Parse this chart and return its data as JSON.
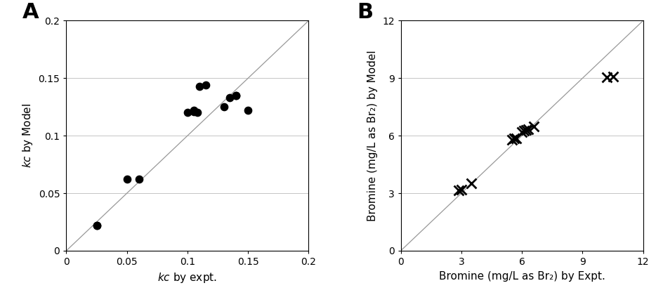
{
  "panel_A": {
    "label": "A",
    "xlabel": "kc by expt.",
    "ylabel": "kc by Model",
    "xlim": [
      0,
      0.2
    ],
    "ylim": [
      0,
      0.2
    ],
    "xticks": [
      0,
      0.05,
      0.1,
      0.15,
      0.2
    ],
    "yticks": [
      0,
      0.05,
      0.1,
      0.15,
      0.2
    ],
    "data_x": [
      0.025,
      0.025,
      0.05,
      0.06,
      0.1,
      0.105,
      0.105,
      0.108,
      0.11,
      0.115,
      0.13,
      0.14,
      0.14,
      0.135,
      0.15
    ],
    "data_y": [
      0.022,
      0.022,
      0.062,
      0.062,
      0.12,
      0.122,
      0.121,
      0.12,
      0.143,
      0.144,
      0.125,
      0.135,
      0.135,
      0.133,
      0.122
    ],
    "marker": "o",
    "markersize": 55
  },
  "panel_B": {
    "label": "B",
    "xlabel": "Bromine (mg/L as Br₂) by Expt.",
    "ylabel": "Bromine (mg/L as Br₂) by Model",
    "xlim": [
      0,
      12
    ],
    "ylim": [
      0,
      12
    ],
    "xticks": [
      0,
      3,
      6,
      9,
      12
    ],
    "yticks": [
      0,
      3,
      6,
      9,
      12
    ],
    "data_x": [
      2.85,
      3.0,
      3.5,
      5.5,
      5.6,
      5.7,
      6.0,
      6.1,
      6.2,
      6.3,
      6.6,
      10.2,
      10.5
    ],
    "data_y": [
      3.15,
      3.2,
      3.5,
      5.8,
      5.85,
      5.85,
      6.2,
      6.25,
      6.3,
      6.35,
      6.5,
      9.05,
      9.1
    ],
    "marker": "x",
    "markersize": 100
  },
  "line_color": "#999999",
  "marker_color": "#000000",
  "bg_color": "#ffffff",
  "grid_color": "#bbbbbb",
  "label_fontsize": 11,
  "tick_fontsize": 10,
  "panel_label_fontsize": 22
}
